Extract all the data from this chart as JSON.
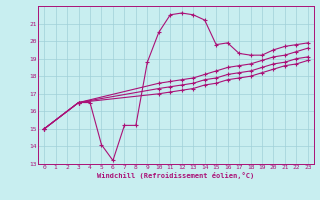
{
  "bg_color": "#c8eef0",
  "grid_color": "#a0d0d8",
  "line_color": "#aa1177",
  "marker_color": "#aa1177",
  "xlabel": "Windchill (Refroidissement éolien,°C)",
  "xlim": [
    -0.5,
    23.5
  ],
  "ylim": [
    13,
    22
  ],
  "yticks": [
    13,
    14,
    15,
    16,
    17,
    18,
    19,
    20,
    21
  ],
  "xticks": [
    0,
    1,
    2,
    3,
    4,
    5,
    6,
    7,
    8,
    9,
    10,
    11,
    12,
    13,
    14,
    15,
    16,
    17,
    18,
    19,
    20,
    21,
    22,
    23
  ],
  "series": [
    {
      "x": [
        0,
        3,
        4,
        5,
        6,
        7,
        8,
        9,
        10,
        11,
        12,
        13,
        14,
        15,
        16,
        17,
        18,
        19,
        20,
        21,
        22,
        23
      ],
      "y": [
        15.0,
        16.5,
        16.5,
        14.1,
        13.2,
        15.2,
        15.2,
        18.8,
        20.5,
        21.5,
        21.6,
        21.5,
        21.2,
        19.8,
        19.9,
        19.3,
        19.2,
        19.2,
        19.5,
        19.7,
        19.8,
        19.9
      ]
    },
    {
      "x": [
        0,
        3,
        10,
        11,
        12,
        13,
        14,
        15,
        16,
        17,
        18,
        19,
        20,
        21,
        22,
        23
      ],
      "y": [
        15.0,
        16.5,
        17.6,
        17.7,
        17.8,
        17.9,
        18.1,
        18.3,
        18.5,
        18.6,
        18.7,
        18.9,
        19.1,
        19.2,
        19.4,
        19.6
      ]
    },
    {
      "x": [
        0,
        3,
        10,
        11,
        12,
        13,
        14,
        15,
        16,
        17,
        18,
        19,
        20,
        21,
        22,
        23
      ],
      "y": [
        15.0,
        16.5,
        17.3,
        17.4,
        17.5,
        17.6,
        17.8,
        17.9,
        18.1,
        18.2,
        18.3,
        18.5,
        18.7,
        18.8,
        19.0,
        19.1
      ]
    },
    {
      "x": [
        0,
        3,
        10,
        11,
        12,
        13,
        14,
        15,
        16,
        17,
        18,
        19,
        20,
        21,
        22,
        23
      ],
      "y": [
        15.0,
        16.5,
        17.0,
        17.1,
        17.2,
        17.3,
        17.5,
        17.6,
        17.8,
        17.9,
        18.0,
        18.2,
        18.4,
        18.6,
        18.7,
        18.9
      ]
    }
  ]
}
